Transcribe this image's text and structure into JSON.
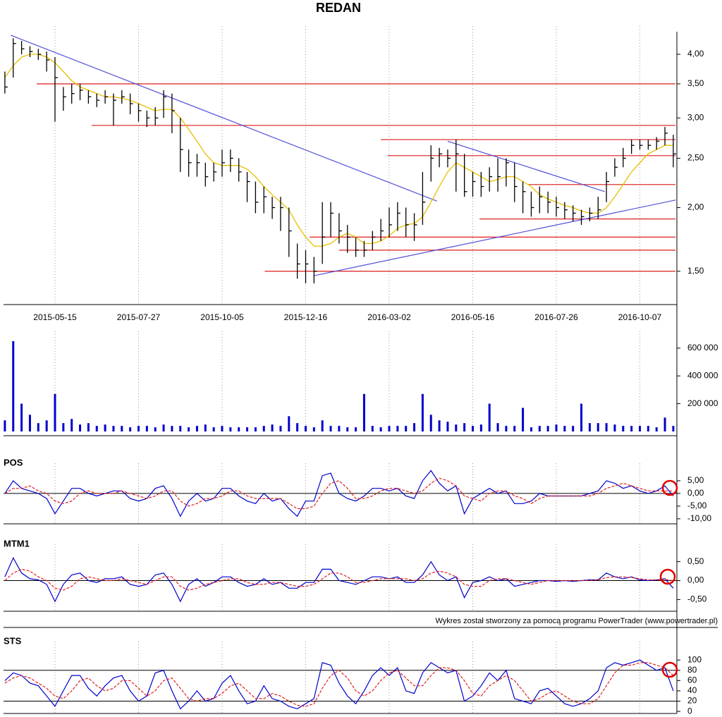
{
  "footer": "Wykres został stworzony za pomocą programu PowerTrader (www.powertrader.pl)",
  "chart_data": [
    {
      "type": "ohlc",
      "title": "REDAN",
      "log_scale": true,
      "color": "#000000",
      "categories": [
        null,
        null,
        null,
        null,
        null,
        null,
        "2015-05-15",
        null,
        null,
        null,
        null,
        null,
        null,
        null,
        null,
        null,
        "2015-07-27",
        null,
        null,
        null,
        null,
        null,
        null,
        null,
        null,
        null,
        "2015-10-05",
        null,
        null,
        null,
        null,
        null,
        null,
        null,
        null,
        null,
        "2015-12-16",
        null,
        null,
        null,
        null,
        null,
        null,
        null,
        null,
        null,
        "2016-03-02",
        null,
        null,
        null,
        null,
        null,
        null,
        null,
        null,
        null,
        "2016-05-16",
        null,
        null,
        null,
        null,
        null,
        null,
        null,
        null,
        null,
        "2016-07-26",
        null,
        null,
        null,
        null,
        null,
        null,
        null,
        null,
        null,
        "2016-10-07",
        null,
        null,
        null,
        null
      ],
      "close": [
        3.45,
        4.2,
        4.1,
        4.05,
        4.0,
        3.9,
        3.6,
        3.3,
        3.35,
        3.4,
        3.3,
        3.25,
        3.3,
        3.25,
        3.3,
        3.2,
        3.1,
        3.0,
        3.0,
        3.3,
        3.1,
        2.6,
        2.45,
        2.45,
        2.3,
        2.35,
        2.45,
        2.5,
        2.35,
        2.25,
        2.05,
        2.1,
        2.0,
        2.0,
        1.8,
        1.55,
        1.55,
        1.5,
        1.75,
        1.95,
        1.8,
        1.75,
        1.65,
        1.65,
        1.75,
        1.8,
        1.85,
        1.95,
        1.85,
        1.85,
        2.05,
        2.5,
        2.55,
        2.5,
        2.55,
        2.15,
        2.25,
        2.2,
        2.3,
        2.3,
        2.45,
        2.2,
        2.15,
        2.0,
        2.1,
        2.05,
        2.0,
        1.98,
        1.95,
        1.92,
        1.95,
        1.98,
        2.25,
        2.4,
        2.5,
        2.65,
        2.65,
        2.65,
        2.7,
        2.8,
        2.55
      ],
      "high": [
        3.7,
        4.3,
        4.25,
        4.15,
        4.1,
        4.05,
        3.95,
        3.45,
        3.5,
        3.5,
        3.4,
        3.35,
        3.4,
        3.35,
        3.4,
        3.35,
        3.2,
        3.1,
        3.15,
        3.4,
        3.35,
        3.0,
        2.6,
        2.55,
        2.45,
        2.45,
        2.6,
        2.6,
        2.5,
        2.35,
        2.25,
        2.2,
        2.1,
        2.1,
        2.0,
        1.7,
        1.65,
        1.6,
        2.05,
        2.05,
        1.95,
        1.85,
        1.75,
        1.72,
        1.8,
        1.9,
        2.0,
        2.05,
        2.0,
        1.95,
        2.35,
        2.65,
        2.62,
        2.6,
        2.72,
        2.55,
        2.35,
        2.35,
        2.4,
        2.5,
        2.5,
        2.45,
        2.25,
        2.15,
        2.2,
        2.15,
        2.1,
        2.05,
        2.02,
        1.98,
        2.0,
        2.1,
        2.35,
        2.5,
        2.62,
        2.72,
        2.72,
        2.72,
        2.75,
        2.88,
        2.78
      ],
      "low": [
        3.35,
        3.6,
        4.0,
        3.95,
        3.9,
        3.7,
        2.95,
        3.1,
        3.2,
        3.25,
        3.2,
        3.15,
        3.2,
        2.9,
        3.2,
        3.05,
        2.95,
        2.88,
        2.9,
        3.0,
        2.8,
        2.35,
        2.3,
        2.3,
        2.2,
        2.25,
        2.3,
        2.35,
        2.25,
        2.05,
        1.95,
        1.95,
        1.9,
        1.8,
        1.6,
        1.45,
        1.42,
        1.42,
        1.55,
        1.75,
        1.7,
        1.63,
        1.6,
        1.6,
        1.65,
        1.72,
        1.75,
        1.8,
        1.75,
        1.72,
        1.85,
        2.25,
        2.4,
        2.4,
        2.15,
        2.1,
        2.1,
        2.1,
        2.15,
        2.15,
        2.2,
        2.05,
        1.95,
        1.92,
        1.95,
        1.95,
        1.92,
        1.9,
        1.88,
        1.85,
        1.88,
        1.9,
        2.05,
        2.3,
        2.4,
        2.55,
        2.6,
        2.6,
        2.6,
        2.65,
        2.4
      ],
      "lines": [
        {
          "color": "#e8c000",
          "values": [
            3.6,
            3.8,
            3.95,
            4.0,
            4.0,
            3.95,
            3.85,
            3.7,
            3.55,
            3.45,
            3.4,
            3.35,
            3.3,
            3.3,
            3.28,
            3.25,
            3.2,
            3.15,
            3.1,
            3.12,
            3.12,
            3.0,
            2.85,
            2.7,
            2.55,
            2.45,
            2.42,
            2.42,
            2.42,
            2.38,
            2.3,
            2.2,
            2.12,
            2.05,
            1.98,
            1.85,
            1.75,
            1.68,
            1.68,
            1.7,
            1.75,
            1.78,
            1.75,
            1.7,
            1.7,
            1.72,
            1.76,
            1.82,
            1.85,
            1.86,
            1.92,
            2.05,
            2.2,
            2.35,
            2.45,
            2.4,
            2.35,
            2.3,
            2.25,
            2.27,
            2.3,
            2.3,
            2.25,
            2.2,
            2.12,
            2.08,
            2.05,
            2.02,
            2.0,
            1.97,
            1.95,
            1.95,
            2.0,
            2.1,
            2.22,
            2.35,
            2.45,
            2.55,
            2.6,
            2.65,
            2.65
          ]
        }
      ],
      "level_color": "#e03030",
      "levels": [
        {
          "value": 3.5,
          "from": 3.8
        },
        {
          "value": 2.9,
          "from": 10.4
        },
        {
          "value": 2.72,
          "from": 45
        },
        {
          "value": 2.53,
          "from": 45.8
        },
        {
          "value": 2.22,
          "from": 62.7
        },
        {
          "value": 1.9,
          "from": 56.8
        },
        {
          "value": 1.75,
          "from": 36.5
        },
        {
          "value": 1.65,
          "from": 40
        },
        {
          "value": 1.5,
          "from": 31.1
        }
      ],
      "trend_color": "#5050d8",
      "trendlines": [
        {
          "x": [
            0.7,
            51.7
          ],
          "y": [
            4.36,
            2.06
          ]
        },
        {
          "x": [
            37,
            80.3
          ],
          "y": [
            1.47,
            2.07
          ]
        },
        {
          "x": [
            53,
            71.8
          ],
          "y": [
            2.7,
            2.15
          ]
        }
      ],
      "ylim": [
        1.29,
        4.43
      ],
      "yticks": [
        {
          "value": 1.5,
          "label": "1,50"
        },
        {
          "value": 2,
          "label": "2,00"
        },
        {
          "value": 2.5,
          "label": "2,50"
        },
        {
          "value": 3,
          "label": "3,00"
        },
        {
          "value": 3.5,
          "label": "3,50"
        },
        {
          "value": 4,
          "label": "4,00"
        }
      ]
    },
    {
      "type": "bar",
      "color": "#0000cc",
      "values": [
        80000,
        650000,
        200000,
        120000,
        60000,
        80000,
        270000,
        60000,
        90000,
        50000,
        60000,
        40000,
        50000,
        40000,
        40000,
        30000,
        40000,
        40000,
        30000,
        50000,
        40000,
        40000,
        30000,
        40000,
        50000,
        30000,
        40000,
        30000,
        30000,
        30000,
        30000,
        40000,
        50000,
        40000,
        110000,
        60000,
        40000,
        30000,
        80000,
        40000,
        40000,
        30000,
        30000,
        270000,
        40000,
        30000,
        40000,
        40000,
        40000,
        60000,
        270000,
        120000,
        80000,
        70000,
        50000,
        60000,
        40000,
        50000,
        200000,
        60000,
        40000,
        40000,
        170000,
        30000,
        40000,
        40000,
        50000,
        40000,
        40000,
        200000,
        60000,
        60000,
        60000,
        50000,
        40000,
        40000,
        40000,
        40000,
        30000,
        100000,
        40000
      ],
      "ylim": [
        0,
        680000
      ],
      "yticks": [
        {
          "value": 200000,
          "label": "200 000"
        },
        {
          "value": 400000,
          "label": "400 000"
        },
        {
          "value": 600000,
          "label": "600 000"
        }
      ]
    },
    {
      "type": "line",
      "title": "POS",
      "zero_line": true,
      "series": [
        {
          "color": "#0000cc",
          "values": [
            0,
            5,
            2,
            1,
            0,
            -2,
            -8,
            -3,
            2,
            2,
            0,
            -1,
            0,
            1,
            1,
            -2,
            -3,
            -2,
            2,
            3,
            -2,
            -9,
            -3,
            0,
            -3,
            -2,
            2,
            2,
            -1,
            -3,
            -4,
            0,
            -3,
            -2,
            -6,
            -9,
            -3,
            -3,
            7,
            8,
            0,
            -2,
            -3,
            -1,
            2,
            2,
            1,
            2,
            -1,
            -2,
            5,
            9,
            4,
            1,
            3,
            -8,
            -2,
            0,
            2,
            0,
            1,
            -4,
            -4,
            -3,
            0,
            -1,
            -1,
            -1,
            -1,
            -1,
            0,
            1,
            5,
            4,
            2,
            3,
            1,
            0,
            1,
            3,
            -1
          ]
        },
        {
          "color": "#e02020",
          "dashed": true,
          "values": [
            0,
            2,
            2,
            3,
            1,
            0,
            -3,
            -4,
            -3,
            0,
            1,
            0,
            0,
            0,
            1,
            0,
            -1,
            -2,
            -1,
            1,
            1,
            -3,
            -5,
            -4,
            -2,
            -2,
            -1,
            1,
            1,
            -1,
            -2,
            -2,
            -2,
            -2,
            -4,
            -6,
            -6,
            -5,
            0,
            4,
            5,
            2,
            -2,
            -2,
            -1,
            1,
            2,
            2,
            1,
            0,
            1,
            4,
            6,
            5,
            3,
            -1,
            -2,
            -3,
            0,
            1,
            1,
            -1,
            -2,
            -4,
            -2,
            -1,
            -1,
            -1,
            -1,
            -1,
            -1,
            0,
            2,
            3,
            4,
            3,
            2,
            1,
            1,
            1,
            1
          ]
        }
      ],
      "ylim": [
        -11.7,
        9.7
      ],
      "yticks": [
        {
          "value": -10,
          "label": "-10,00"
        },
        {
          "value": -5,
          "label": "-5,00"
        },
        {
          "value": 0,
          "label": "0,00"
        },
        {
          "value": 5,
          "label": "5,00"
        }
      ]
    },
    {
      "type": "line",
      "title": "MTM1",
      "zero_line": true,
      "series": [
        {
          "color": "#0000cc",
          "values": [
            0.1,
            0.6,
            0.2,
            0.05,
            0.02,
            -0.1,
            -0.55,
            -0.1,
            0.15,
            0.2,
            0,
            -0.05,
            0.05,
            0.05,
            0.1,
            -0.1,
            -0.15,
            -0.1,
            0.15,
            0.2,
            -0.1,
            -0.55,
            -0.1,
            0.05,
            -0.15,
            -0.05,
            0.1,
            0.1,
            -0.05,
            -0.15,
            -0.1,
            0.05,
            -0.1,
            -0.05,
            -0.2,
            -0.2,
            -0.05,
            -0.05,
            0.3,
            0.3,
            0,
            -0.05,
            -0.1,
            0,
            0.1,
            0.1,
            0.05,
            0.1,
            -0.05,
            -0.05,
            0.15,
            0.5,
            0.15,
            0,
            0.1,
            -0.45,
            -0.05,
            0,
            0.1,
            0,
            0.05,
            -0.15,
            -0.1,
            -0.05,
            0,
            0,
            -0.02,
            0,
            -0.02,
            0,
            0.02,
            0.02,
            0.2,
            0.1,
            0.05,
            0.1,
            0.02,
            0,
            0.02,
            0.05,
            -0.2
          ]
        },
        {
          "color": "#e02020",
          "dashed": true,
          "values": [
            0,
            0.2,
            0.3,
            0.25,
            0.1,
            0,
            -0.2,
            -0.25,
            -0.15,
            0.05,
            0.1,
            0.05,
            0,
            0,
            0.05,
            0,
            -0.05,
            -0.1,
            0,
            0.1,
            0.1,
            -0.15,
            -0.25,
            -0.2,
            -0.1,
            -0.05,
            0,
            0.05,
            0.05,
            -0.05,
            -0.1,
            -0.1,
            -0.05,
            -0.05,
            -0.1,
            -0.15,
            -0.15,
            -0.1,
            0.05,
            0.2,
            0.2,
            0.1,
            -0.05,
            -0.05,
            0,
            0.05,
            0.05,
            0.05,
            0.05,
            0,
            0.05,
            0.2,
            0.25,
            0.2,
            0.1,
            -0.1,
            -0.15,
            -0.15,
            0,
            0.05,
            0.05,
            0,
            -0.05,
            -0.1,
            -0.05,
            0,
            0,
            0,
            0,
            0,
            0,
            0.02,
            0.08,
            0.1,
            0.1,
            0.08,
            0.05,
            0.02,
            0.02,
            0.03,
            0
          ]
        }
      ],
      "ylim": [
        -0.79,
        0.81
      ],
      "yticks": [
        {
          "value": -0.5,
          "label": "-0,50"
        },
        {
          "value": 0,
          "label": "0,00"
        },
        {
          "value": 0.5,
          "label": "0,50"
        }
      ]
    },
    {
      "type": "line",
      "title": "STS",
      "hlines": [
        20,
        80
      ],
      "series": [
        {
          "color": "#0000cc",
          "values": [
            60,
            75,
            70,
            55,
            50,
            30,
            10,
            40,
            70,
            70,
            45,
            30,
            50,
            65,
            70,
            40,
            20,
            30,
            75,
            80,
            40,
            5,
            20,
            40,
            20,
            25,
            55,
            70,
            40,
            15,
            20,
            50,
            25,
            20,
            10,
            5,
            15,
            25,
            95,
            90,
            55,
            30,
            15,
            40,
            70,
            85,
            70,
            85,
            40,
            35,
            75,
            95,
            85,
            75,
            80,
            20,
            30,
            50,
            75,
            60,
            80,
            25,
            20,
            15,
            40,
            45,
            30,
            15,
            10,
            15,
            25,
            40,
            85,
            95,
            90,
            95,
            100,
            90,
            80,
            85,
            40
          ]
        },
        {
          "color": "#e02020",
          "dashed": true,
          "values": [
            55,
            65,
            70,
            65,
            55,
            45,
            30,
            25,
            40,
            60,
            65,
            50,
            40,
            45,
            60,
            60,
            45,
            30,
            40,
            60,
            65,
            45,
            25,
            20,
            25,
            25,
            35,
            50,
            55,
            40,
            25,
            25,
            35,
            30,
            20,
            12,
            10,
            15,
            45,
            70,
            80,
            65,
            40,
            30,
            40,
            60,
            75,
            80,
            65,
            50,
            50,
            70,
            85,
            85,
            80,
            60,
            35,
            30,
            50,
            60,
            70,
            60,
            40,
            20,
            25,
            35,
            40,
            30,
            20,
            15,
            15,
            25,
            50,
            75,
            90,
            90,
            95,
            95,
            90,
            85,
            70
          ]
        }
      ],
      "ylim": [
        -4,
        125
      ],
      "yticks": [
        0,
        20,
        40,
        60,
        80,
        100
      ]
    }
  ]
}
